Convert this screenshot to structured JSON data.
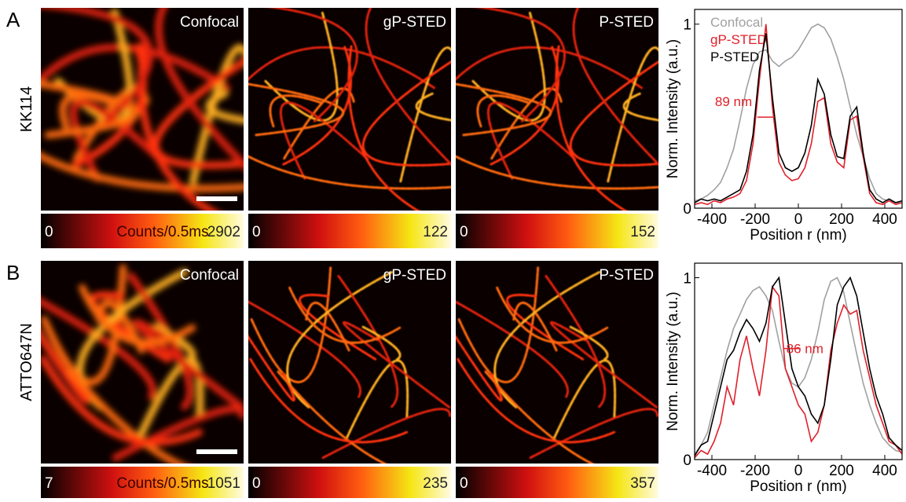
{
  "panels": [
    {
      "label": "A",
      "dye": "KK114",
      "images": [
        {
          "title": "Confocal",
          "cbar_min": 0,
          "cbar_label": "Counts/0.5ms",
          "cbar_max": 2902
        },
        {
          "title": "gP-STED",
          "cbar_min": 0,
          "cbar_max": 122
        },
        {
          "title": "P-STED",
          "cbar_min": 0,
          "cbar_max": 152
        }
      ]
    },
    {
      "label": "B",
      "dye": "ATTO647N",
      "images": [
        {
          "title": "Confocal",
          "cbar_min": 7,
          "cbar_label": "Counts/0.5ms",
          "cbar_max": 1051
        },
        {
          "title": "gP-STED",
          "cbar_min": 0,
          "cbar_max": 235
        },
        {
          "title": "P-STED",
          "cbar_min": 0,
          "cbar_max": 357
        }
      ]
    }
  ],
  "chart_data": [
    {
      "type": "line",
      "xlabel": "Position r (nm)",
      "ylabel": "Norm. Intensity (a.u.)",
      "annotation": "89 nm",
      "xlim": [
        -480,
        480
      ],
      "ylim": [
        0,
        1.08
      ],
      "xticks": [
        -400,
        -200,
        0,
        200,
        400
      ],
      "yticks": [
        0,
        1
      ],
      "x": [
        -480,
        -450,
        -420,
        -390,
        -360,
        -330,
        -300,
        -270,
        -240,
        -210,
        -180,
        -150,
        -120,
        -90,
        -60,
        -30,
        0,
        30,
        60,
        90,
        120,
        150,
        180,
        210,
        240,
        270,
        300,
        330,
        360,
        390,
        420,
        450,
        480
      ],
      "series": [
        {
          "name": "Confocal",
          "color": "#a0a0a0",
          "values": [
            0.04,
            0.05,
            0.07,
            0.1,
            0.14,
            0.22,
            0.32,
            0.48,
            0.65,
            0.78,
            0.85,
            0.86,
            0.8,
            0.77,
            0.8,
            0.82,
            0.86,
            0.92,
            0.98,
            1.0,
            0.98,
            0.92,
            0.82,
            0.7,
            0.55,
            0.4,
            0.28,
            0.16,
            0.08,
            0.05,
            0.04,
            0.03,
            0.03
          ]
        },
        {
          "name": "gP-STED",
          "color": "#e0202a",
          "values": [
            0.02,
            0.03,
            0.02,
            0.04,
            0.03,
            0.05,
            0.06,
            0.08,
            0.15,
            0.35,
            0.7,
            1.0,
            0.55,
            0.25,
            0.18,
            0.15,
            0.16,
            0.22,
            0.35,
            0.58,
            0.6,
            0.35,
            0.25,
            0.22,
            0.48,
            0.5,
            0.28,
            0.08,
            0.03,
            0.02,
            0.04,
            0.02,
            0.03
          ]
        },
        {
          "name": "P-STED",
          "color": "#000000",
          "values": [
            0.03,
            0.05,
            0.04,
            0.05,
            0.04,
            0.06,
            0.08,
            0.1,
            0.2,
            0.4,
            0.75,
            0.95,
            0.6,
            0.3,
            0.22,
            0.2,
            0.22,
            0.3,
            0.45,
            0.7,
            0.62,
            0.4,
            0.28,
            0.27,
            0.5,
            0.55,
            0.3,
            0.1,
            0.05,
            0.03,
            0.05,
            0.03,
            0.04
          ]
        }
      ]
    },
    {
      "type": "line",
      "xlabel": "Position r (nm)",
      "ylabel": "Norm. Intensity (a.u.)",
      "annotation": "86 nm",
      "xlim": [
        -480,
        480
      ],
      "ylim": [
        0,
        1.08
      ],
      "xticks": [
        -400,
        -200,
        0,
        200,
        400
      ],
      "yticks": [
        0,
        1
      ],
      "x": [
        -480,
        -450,
        -420,
        -390,
        -360,
        -330,
        -300,
        -270,
        -240,
        -210,
        -180,
        -150,
        -120,
        -90,
        -60,
        -30,
        0,
        30,
        60,
        90,
        120,
        150,
        180,
        210,
        240,
        270,
        300,
        330,
        360,
        390,
        420,
        450,
        480
      ],
      "series": [
        {
          "color": "#a0a0a0",
          "values": [
            0.03,
            0.08,
            0.15,
            0.3,
            0.45,
            0.6,
            0.72,
            0.8,
            0.88,
            0.93,
            0.95,
            0.9,
            0.82,
            0.65,
            0.5,
            0.42,
            0.4,
            0.45,
            0.55,
            0.7,
            0.88,
            0.98,
            1.0,
            0.92,
            0.75,
            0.58,
            0.42,
            0.3,
            0.2,
            0.12,
            0.08,
            0.05,
            0.04
          ]
        },
        {
          "color": "#e0202a",
          "values": [
            0.01,
            0.05,
            0.03,
            0.1,
            0.2,
            0.4,
            0.3,
            0.55,
            0.68,
            0.5,
            0.35,
            0.6,
            0.95,
            0.9,
            0.5,
            0.4,
            0.3,
            0.25,
            0.1,
            0.15,
            0.3,
            0.6,
            0.75,
            0.85,
            0.8,
            0.82,
            0.6,
            0.45,
            0.3,
            0.2,
            0.1,
            0.08,
            0.03
          ]
        },
        {
          "color": "#000000",
          "values": [
            0.02,
            0.08,
            0.1,
            0.25,
            0.4,
            0.55,
            0.6,
            0.7,
            0.77,
            0.72,
            0.65,
            0.75,
            0.95,
            1.0,
            0.75,
            0.5,
            0.4,
            0.35,
            0.25,
            0.2,
            0.3,
            0.55,
            0.85,
            0.95,
            1.0,
            0.9,
            0.7,
            0.5,
            0.35,
            0.25,
            0.12,
            0.08,
            0.05
          ]
        }
      ]
    }
  ]
}
